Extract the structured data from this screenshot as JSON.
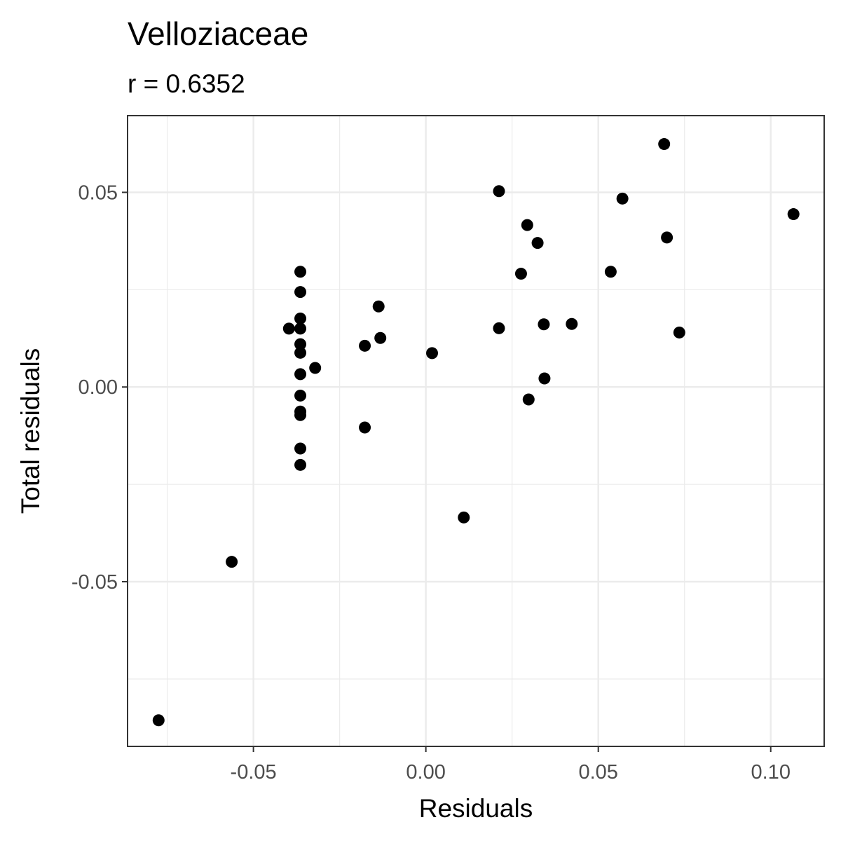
{
  "chart_data": {
    "type": "scatter",
    "title": "Velloziaceae",
    "subtitle": "r = 0.6352",
    "xlabel": "Residuals",
    "ylabel": "Total residuals",
    "xlim": [
      -0.0865,
      0.1155
    ],
    "ylim": [
      -0.0923,
      0.0697
    ],
    "x_major_ticks": [
      -0.05,
      0.0,
      0.05,
      0.1
    ],
    "x_tick_labels": [
      "-0.05",
      "0.00",
      "0.05",
      "0.10"
    ],
    "x_minor_ticks": [
      -0.075,
      -0.025,
      0.025,
      0.075
    ],
    "y_major_ticks": [
      -0.05,
      0.0,
      0.05
    ],
    "y_tick_labels": [
      "-0.05",
      "0.00",
      "0.05"
    ],
    "y_minor_ticks": [
      -0.075,
      -0.025,
      0.025
    ],
    "grid": true,
    "point_color": "#000000",
    "points": [
      {
        "x": -0.0775,
        "y": -0.0856
      },
      {
        "x": -0.0563,
        "y": -0.0449
      },
      {
        "x": -0.0397,
        "y": 0.015
      },
      {
        "x": -0.0364,
        "y": 0.0296
      },
      {
        "x": -0.0364,
        "y": 0.0244
      },
      {
        "x": -0.0364,
        "y": 0.0176
      },
      {
        "x": -0.0364,
        "y": 0.015
      },
      {
        "x": -0.0364,
        "y": 0.011
      },
      {
        "x": -0.0364,
        "y": 0.0088
      },
      {
        "x": -0.0364,
        "y": 0.0033
      },
      {
        "x": -0.0364,
        "y": -0.0022
      },
      {
        "x": -0.0364,
        "y": -0.0063
      },
      {
        "x": -0.0364,
        "y": -0.0072
      },
      {
        "x": -0.0364,
        "y": -0.0158
      },
      {
        "x": -0.0364,
        "y": -0.02
      },
      {
        "x": -0.0321,
        "y": 0.0049
      },
      {
        "x": -0.0177,
        "y": 0.0106
      },
      {
        "x": -0.0177,
        "y": -0.0104
      },
      {
        "x": -0.0137,
        "y": 0.0207
      },
      {
        "x": -0.0132,
        "y": 0.0126
      },
      {
        "x": 0.0018,
        "y": 0.0087
      },
      {
        "x": 0.011,
        "y": -0.0335
      },
      {
        "x": 0.0212,
        "y": 0.0503
      },
      {
        "x": 0.0212,
        "y": 0.0151
      },
      {
        "x": 0.0276,
        "y": 0.0291
      },
      {
        "x": 0.0294,
        "y": 0.0416
      },
      {
        "x": 0.0298,
        "y": -0.0032
      },
      {
        "x": 0.0324,
        "y": 0.037
      },
      {
        "x": 0.0342,
        "y": 0.0161
      },
      {
        "x": 0.0344,
        "y": 0.0022
      },
      {
        "x": 0.0423,
        "y": 0.0162
      },
      {
        "x": 0.0536,
        "y": 0.0296
      },
      {
        "x": 0.057,
        "y": 0.0484
      },
      {
        "x": 0.0691,
        "y": 0.0624
      },
      {
        "x": 0.0699,
        "y": 0.0384
      },
      {
        "x": 0.0735,
        "y": 0.014
      },
      {
        "x": 0.1066,
        "y": 0.0444
      }
    ]
  }
}
